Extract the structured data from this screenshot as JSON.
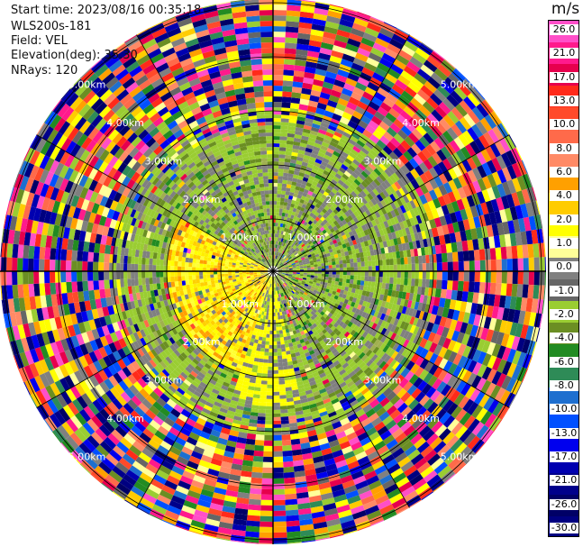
{
  "info": {
    "start_time": "Start time: 2023/08/16 00:35:18",
    "instrument": "WLS200s-181",
    "field": "Field: VEL",
    "elevation": "Elevation(deg): 35.30",
    "nrays": "NRays: 120"
  },
  "colorbar": {
    "unit": "m/s",
    "ticks": [
      "26.0",
      "21.0",
      "17.0",
      "13.0",
      "10.0",
      "8.0",
      "6.0",
      "4.0",
      "2.0",
      "1.0",
      "0.0",
      "-1.0",
      "-2.0",
      "-4.0",
      "-6.0",
      "-8.0",
      "-10.0",
      "-13.0",
      "-17.0",
      "-21.0",
      "-26.0",
      "-30.0"
    ],
    "colors": [
      "#ff4fc8",
      "#ff1a8c",
      "#e6004d",
      "#ff2a1a",
      "#ff4a2a",
      "#ff6a4a",
      "#ff8a66",
      "#ffa000",
      "#ffcc00",
      "#ffff00",
      "#ffff99",
      "#808080",
      "#666666",
      "#9acd32",
      "#6b8e23",
      "#228b22",
      "#2e8b57",
      "#1e6fcf",
      "#0050ff",
      "#0000ee",
      "#0000b0",
      "#00008b",
      "#000066",
      "#000080"
    ]
  },
  "chart_data": {
    "type": "heatmap",
    "field": "VEL",
    "units": "m/s",
    "nrays": 120,
    "range_ring_labels": [
      "1.00km",
      "2.00km",
      "3.00km",
      "4.00km",
      "5.00km"
    ],
    "value_range": [
      -30.0,
      26.0
    ]
  }
}
